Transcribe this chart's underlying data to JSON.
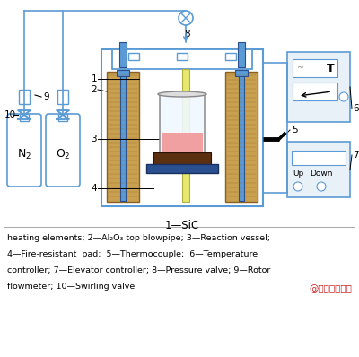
{
  "bg_color": "#ffffff",
  "fig_width": 4.0,
  "fig_height": 3.98,
  "dpi": 100,
  "line_color": "#5b9bd5",
  "heating_fill": "#c8a050",
  "heating_edge": "#8b6020",
  "tube_fill": "#5b9bd5",
  "tube_edge": "#2a5090",
  "blowpipe_fill": "#e8e870",
  "blowpipe_edge": "#b0b040",
  "vessel_fill": "#f0f8ff",
  "vessel_edge": "#888888",
  "melt_fill": "#f0a0a0",
  "pad_fill": "#5a3010",
  "pad_edge": "#2a1005",
  "base_fill": "#2a5090",
  "base_edge": "#1a3060",
  "ctrl_fill": "#e8f0f8",
  "text_color": "#000000",
  "red_text_color": "#cc2222",
  "label1": "1—SiC",
  "legend_line1": "heating elements; 2—Al₂O₃ top blowpipe; 3—Reaction vessel;",
  "legend_line2": "4—Fire-resistant  pad;  5—Thermocouple;  6—Temperature",
  "legend_line3": "controller; 7—Elevator controller; 8—Pressure valve; 9—Rotor",
  "legend_line4": "flowmeter; 10—Swirling valve",
  "watermark": "@有色金属在线"
}
